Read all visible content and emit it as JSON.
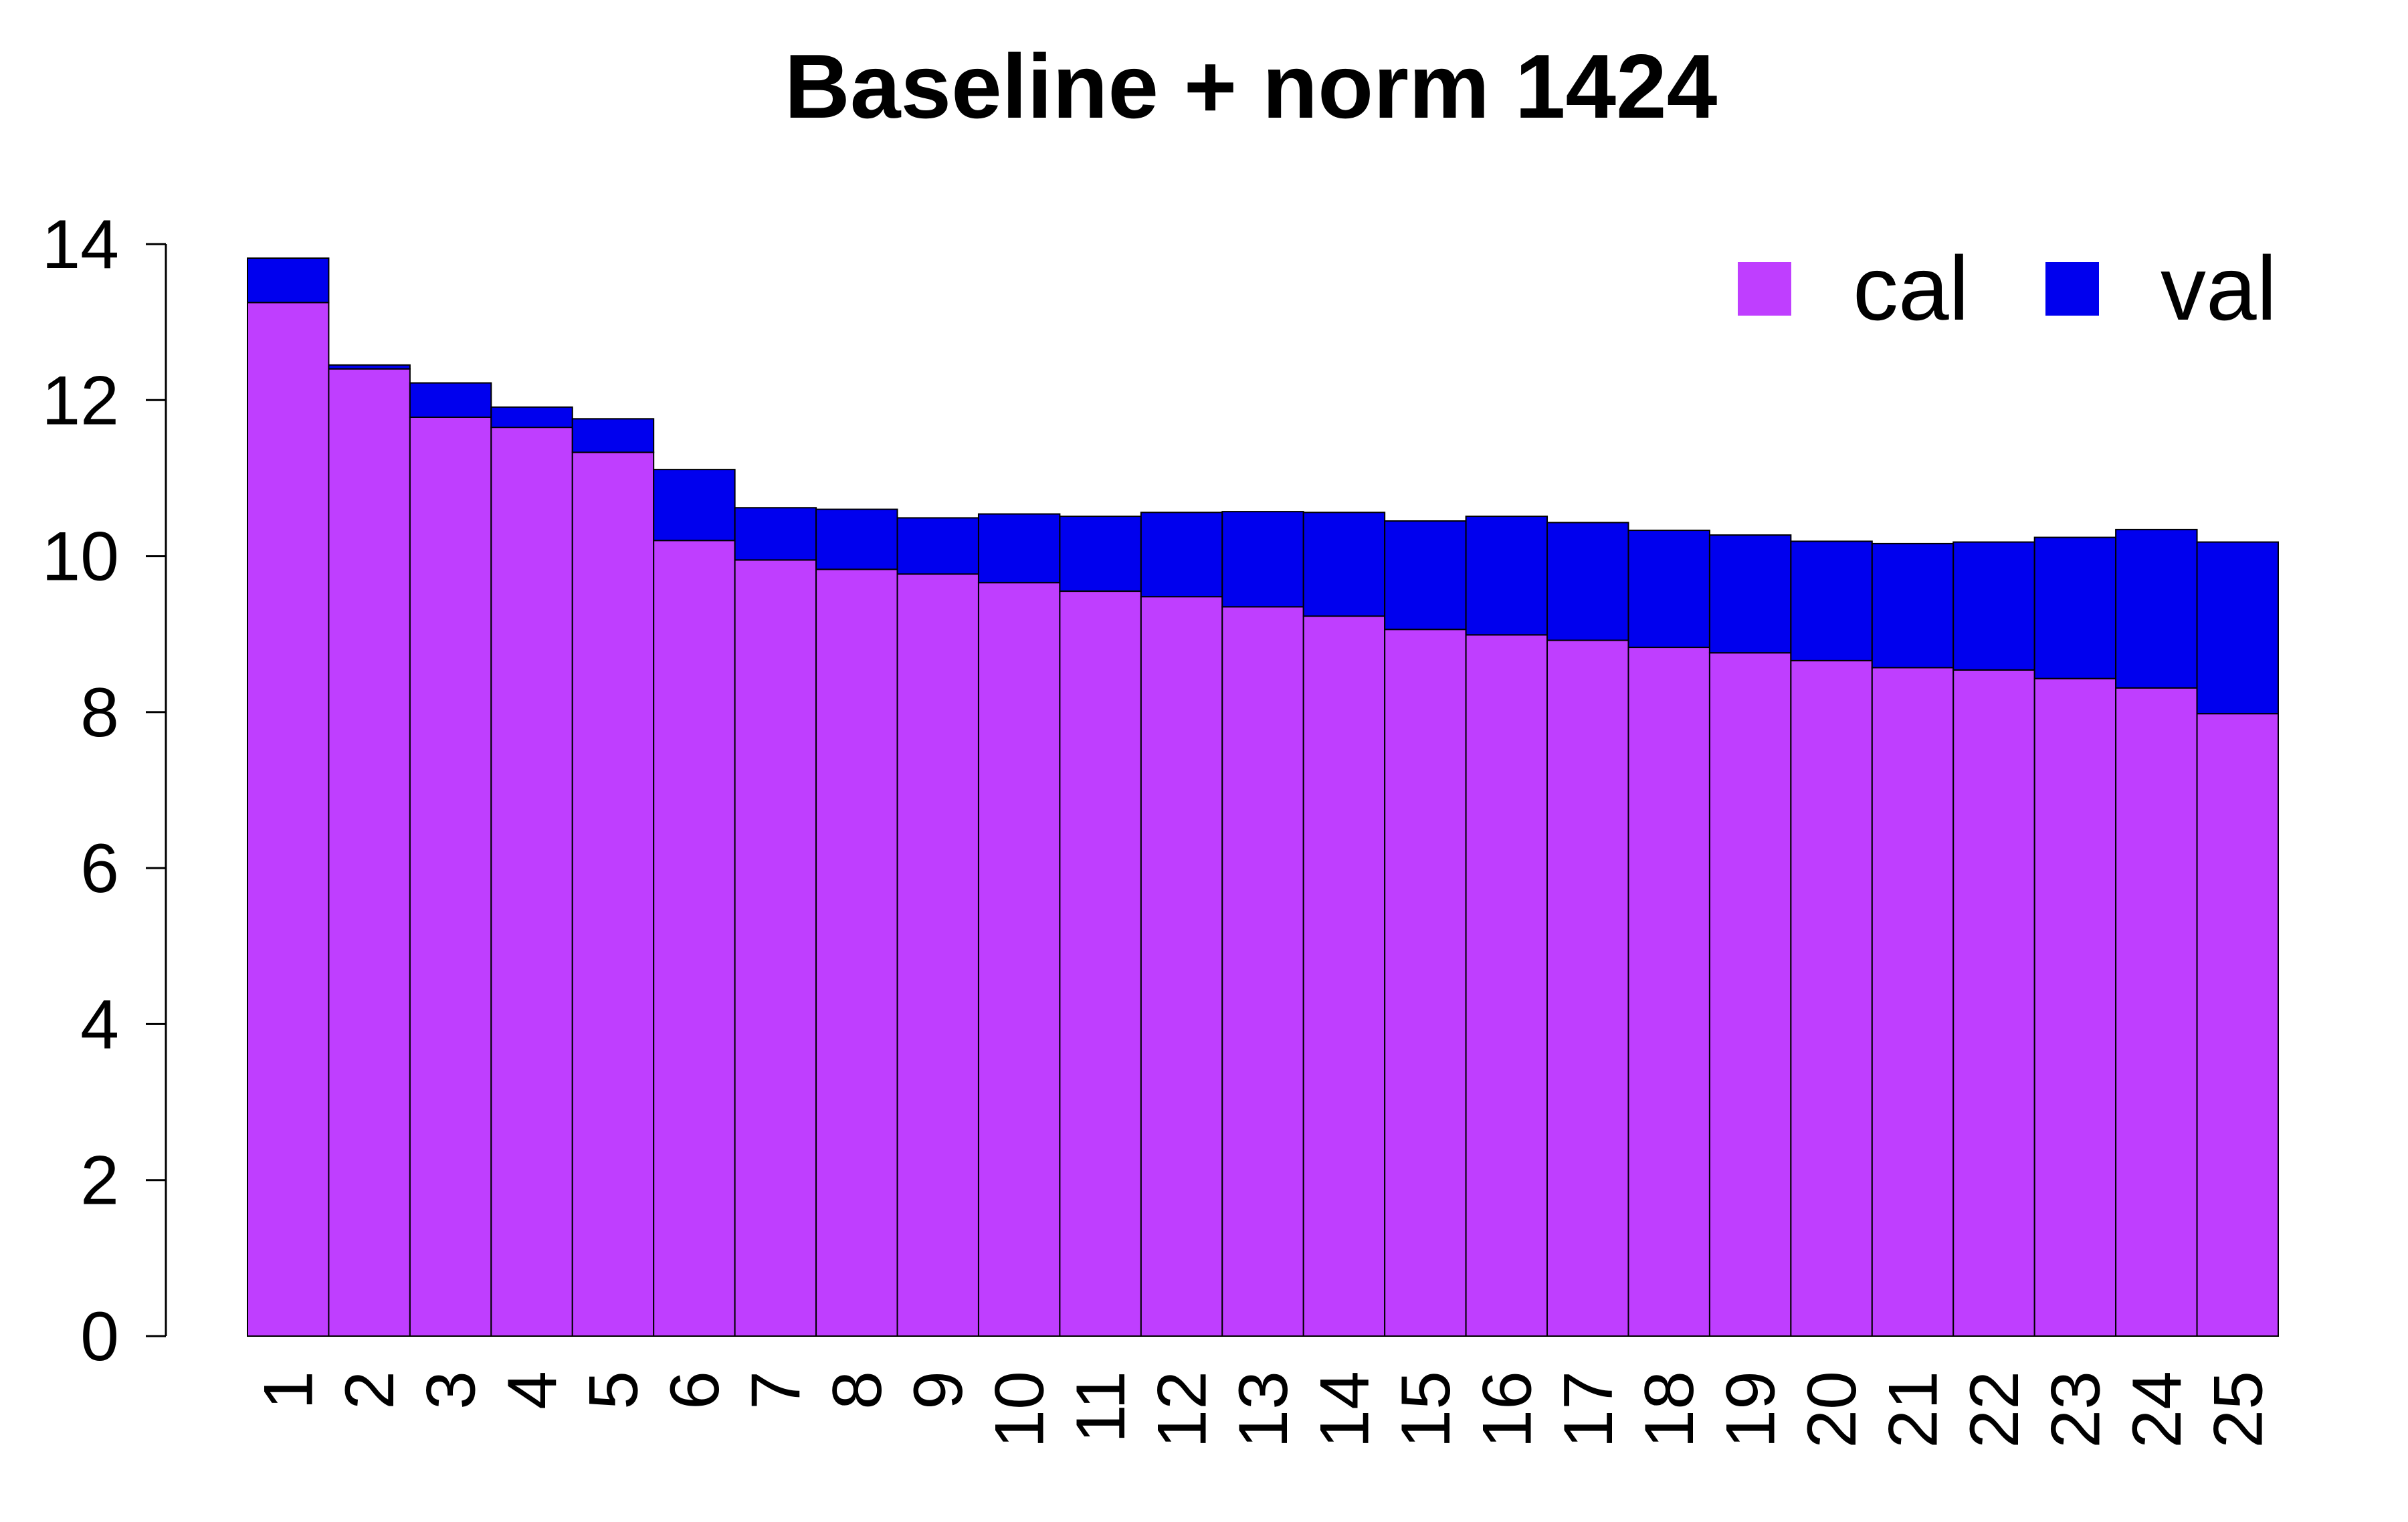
{
  "chart_data": {
    "type": "bar",
    "stacked": true,
    "title": "Baseline + norm 1424",
    "xlabel": "",
    "ylabel": "",
    "categories": [
      "1",
      "2",
      "3",
      "4",
      "5",
      "6",
      "7",
      "8",
      "9",
      "10",
      "11",
      "12",
      "13",
      "14",
      "15",
      "16",
      "17",
      "18",
      "19",
      "20",
      "21",
      "22",
      "23",
      "24",
      "25"
    ],
    "series": [
      {
        "name": "cal",
        "color": "#BF3EFF",
        "values": [
          13.25,
          12.4,
          11.78,
          11.65,
          11.33,
          10.2,
          9.95,
          9.83,
          9.77,
          9.66,
          9.55,
          9.48,
          9.35,
          9.23,
          9.06,
          8.99,
          8.92,
          8.83,
          8.76,
          8.66,
          8.57,
          8.54,
          8.43,
          8.31,
          7.98
        ]
      },
      {
        "name": "val",
        "color": "#0000EE",
        "values": [
          0.57,
          0.05,
          0.44,
          0.26,
          0.43,
          0.91,
          0.67,
          0.77,
          0.72,
          0.88,
          0.96,
          1.08,
          1.22,
          1.33,
          1.39,
          1.52,
          1.51,
          1.5,
          1.51,
          1.53,
          1.59,
          1.64,
          1.81,
          2.03,
          2.2
        ]
      }
    ],
    "ylim": [
      0,
      14
    ],
    "yticks": [
      "0",
      "2",
      "4",
      "6",
      "8",
      "10",
      "12",
      "14"
    ],
    "grid": false,
    "legend_position": "top-right"
  }
}
